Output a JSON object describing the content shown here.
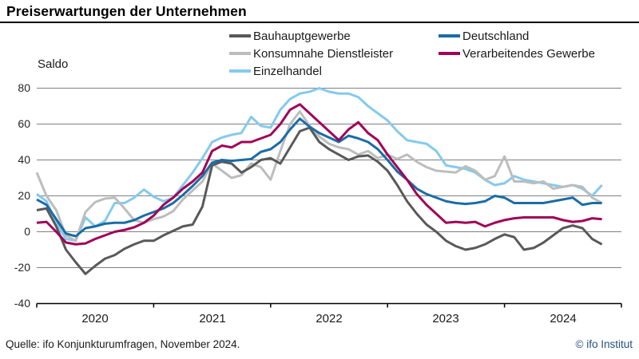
{
  "header": {
    "title": "Preiserwartungen der Unternehmen"
  },
  "footer": {
    "source": "Quelle: ifo Konjunkturumfragen, November 2024.",
    "copyright": "© ifo Institut"
  },
  "chart_data": {
    "type": "line",
    "title": "Preiserwartungen der Unternehmen",
    "ylabel": "Saldo",
    "xlabel": "",
    "ylim": [
      -40,
      80
    ],
    "y_ticks": [
      80,
      60,
      40,
      20,
      0,
      -20,
      -40
    ],
    "x_tick_years": [
      "2020",
      "2021",
      "2022",
      "2023",
      "2024"
    ],
    "x_months_span": 60,
    "x_start": "2020-01",
    "x_end": "2024-11",
    "grid": true,
    "legend_position": "top",
    "axis_color": "#000000",
    "grid_color": "#7f7f7f",
    "series": [
      {
        "name": "Bauhauptgewerbe",
        "color": "#595959",
        "values": [
          12,
          13,
          3,
          -10,
          -17,
          -23.5,
          -19,
          -15,
          -13,
          -9.5,
          -7,
          -5,
          -5,
          -2,
          0.5,
          3,
          4,
          14,
          37,
          39,
          38,
          33,
          36,
          40,
          41,
          38,
          47,
          56,
          58,
          50,
          46,
          43,
          40,
          42,
          42.5,
          39,
          34,
          26,
          17,
          10,
          4,
          0,
          -5,
          -8,
          -10,
          -9,
          -7,
          -4,
          -1.5,
          -3,
          -10,
          -9,
          -6,
          -2,
          2,
          3.5,
          2,
          -4,
          -7
        ]
      },
      {
        "name": "Konsumnahe Dienstleister",
        "color": "#bdbdbd",
        "values": [
          33,
          20,
          12,
          -2,
          -5,
          11,
          16.5,
          18.5,
          19,
          13,
          6.5,
          5,
          7,
          8.5,
          11.5,
          18,
          23,
          28,
          38,
          34,
          30,
          31.5,
          38,
          36,
          29,
          45,
          60,
          67,
          59,
          53,
          49,
          47,
          46,
          43,
          45,
          41,
          43,
          40.5,
          43,
          39,
          36,
          34,
          33.5,
          33,
          36.5,
          34,
          29,
          31,
          42,
          28,
          28,
          27,
          28,
          24,
          25,
          26,
          25,
          19,
          16
        ]
      },
      {
        "name": "Einzelhandel",
        "color": "#85caec",
        "values": [
          21,
          17,
          5,
          -4,
          -5,
          8,
          3,
          6,
          16,
          16,
          19,
          23.5,
          19.5,
          17,
          19,
          26,
          33,
          41,
          50,
          52.5,
          54,
          55,
          64,
          59,
          58,
          68,
          74,
          77,
          78,
          80,
          78,
          77,
          77,
          75,
          70,
          66,
          62,
          56,
          51,
          50,
          49,
          45,
          37,
          36,
          35,
          33,
          29,
          26,
          27,
          31,
          29,
          28,
          27,
          26,
          25,
          26,
          24,
          20,
          26
        ]
      },
      {
        "name": "Deutschland",
        "color": "#1b6ca8",
        "values": [
          18,
          15,
          7,
          -1,
          -2.5,
          2,
          3,
          4.5,
          5,
          5,
          6.5,
          9,
          11,
          13,
          16,
          20.5,
          25.5,
          31,
          38.5,
          40,
          39.5,
          40,
          40.5,
          44.5,
          46,
          50,
          57,
          63,
          58.5,
          55,
          52.5,
          50,
          53.5,
          52,
          50,
          46,
          40,
          33.5,
          29,
          24,
          21,
          19,
          17,
          16,
          15.5,
          16,
          17,
          20,
          19,
          16,
          16,
          16,
          16,
          17,
          18,
          19,
          15,
          16,
          16
        ]
      },
      {
        "name": "Verarbeitendes Gewerbe",
        "color": "#a00557",
        "values": [
          5,
          5.5,
          0,
          -6,
          -7,
          -6.5,
          -4,
          -2,
          0,
          1,
          2.5,
          5,
          9,
          15,
          19,
          24,
          28,
          33,
          45,
          48,
          47,
          50,
          50,
          52,
          54,
          60,
          68,
          71,
          66,
          61,
          56,
          51,
          57,
          61,
          55,
          51,
          43,
          36,
          29,
          21,
          15,
          10,
          5,
          5.5,
          5,
          5.5,
          3,
          5,
          6.5,
          7.5,
          8,
          8,
          8,
          8,
          6.5,
          5.5,
          6,
          7.5,
          7
        ]
      }
    ],
    "z_order": [
      2,
      1,
      0,
      3,
      4
    ]
  }
}
